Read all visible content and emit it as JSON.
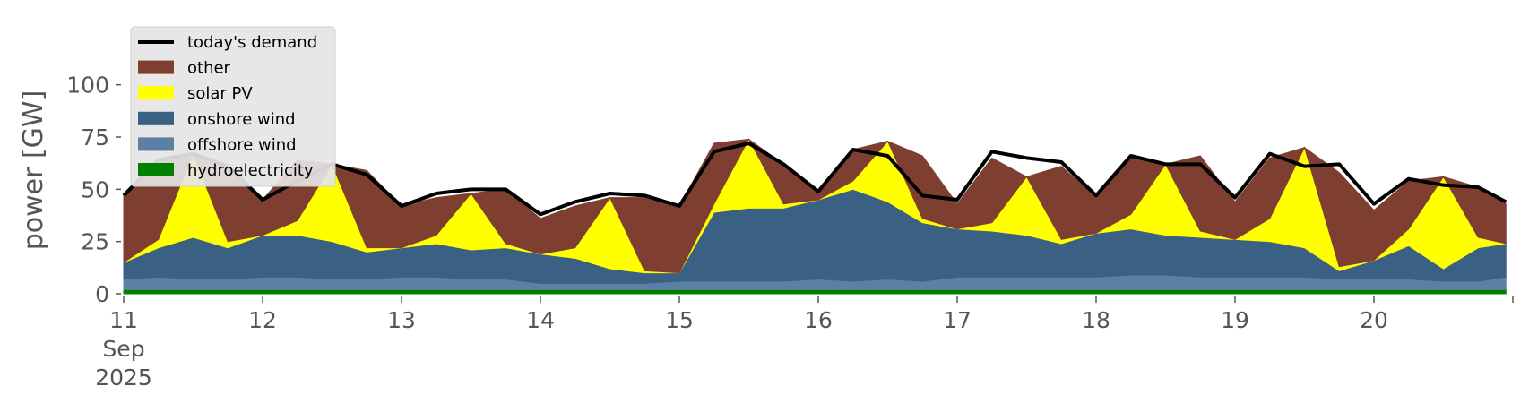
{
  "chart_data": {
    "type": "area",
    "title": "",
    "xlabel": "",
    "ylabel": "power [GW]",
    "ylim": [
      0,
      120
    ],
    "yticks": [
      0,
      25,
      50,
      75,
      100
    ],
    "xlim": [
      0,
      10
    ],
    "x_ticks": [
      {
        "x": 0,
        "lines": [
          "11",
          "Sep",
          "2025"
        ]
      },
      {
        "x": 1,
        "lines": [
          "12"
        ]
      },
      {
        "x": 2,
        "lines": [
          "13"
        ]
      },
      {
        "x": 3,
        "lines": [
          "14"
        ]
      },
      {
        "x": 4,
        "lines": [
          "15"
        ]
      },
      {
        "x": 5,
        "lines": [
          "16"
        ]
      },
      {
        "x": 6,
        "lines": [
          "17"
        ]
      },
      {
        "x": 7,
        "lines": [
          "18"
        ]
      },
      {
        "x": 8,
        "lines": [
          "19"
        ]
      },
      {
        "x": 9,
        "lines": [
          "20"
        ]
      }
    ],
    "grid": false,
    "legend_position": "top-left",
    "x": [
      0,
      0.25,
      0.5,
      0.75,
      1,
      1.25,
      1.5,
      1.75,
      2,
      2.25,
      2.5,
      2.75,
      3,
      3.25,
      3.5,
      3.75,
      4,
      4.25,
      4.5,
      4.75,
      5,
      5.25,
      5.5,
      5.75,
      6,
      6.25,
      6.5,
      6.75,
      7,
      7.25,
      7.5,
      7.75,
      8,
      8.25,
      8.5,
      8.75,
      9,
      9.25,
      9.5,
      9.75,
      9.95
    ],
    "stacked_series": [
      {
        "name": "hydroelectricity",
        "color": "#008000",
        "values": [
          2,
          2,
          2,
          2,
          2,
          2,
          2,
          2,
          2,
          2,
          2,
          2,
          2,
          2,
          2,
          2,
          2,
          2,
          2,
          2,
          2,
          2,
          2,
          2,
          2,
          2,
          2,
          2,
          2,
          2,
          2,
          2,
          2,
          2,
          2,
          2,
          2,
          2,
          2,
          2,
          2
        ]
      },
      {
        "name": "offshore wind",
        "color": "#5b80a5",
        "values": [
          5,
          6,
          5,
          5,
          6,
          6,
          5,
          5,
          6,
          6,
          5,
          5,
          3,
          3,
          3,
          3,
          4,
          4,
          4,
          4,
          5,
          4,
          5,
          4,
          6,
          6,
          6,
          6,
          6,
          7,
          7,
          6,
          6,
          6,
          6,
          5,
          5,
          5,
          4,
          4,
          6
        ]
      },
      {
        "name": "onshore wind",
        "color": "#3a6083",
        "values": [
          8,
          14,
          20,
          15,
          20,
          20,
          18,
          13,
          14,
          16,
          14,
          15,
          14,
          12,
          7,
          5,
          4,
          33,
          35,
          35,
          38,
          44,
          37,
          28,
          23,
          22,
          20,
          16,
          21,
          22,
          19,
          19,
          18,
          17,
          14,
          4,
          9,
          16,
          6,
          16,
          16
        ]
      },
      {
        "name": "solar PV",
        "color": "#ffff00",
        "values": [
          0,
          4,
          40,
          3,
          0,
          7,
          37,
          2,
          0,
          4,
          27,
          2,
          0,
          5,
          34,
          1,
          0,
          4,
          33,
          2,
          0,
          4,
          29,
          2,
          0,
          4,
          28,
          2,
          0,
          7,
          34,
          3,
          0,
          11,
          48,
          2,
          0,
          8,
          44,
          5,
          0
        ]
      },
      {
        "name": "other",
        "color": "#7f3f30",
        "values": [
          32,
          38,
          0,
          36,
          17,
          29,
          0,
          37,
          20,
          18,
          0,
          26,
          17,
          20,
          0,
          35,
          32,
          29,
          0,
          19,
          4,
          15,
          0,
          30,
          12,
          31,
          0,
          35,
          17,
          27,
          0,
          36,
          18,
          29,
          0,
          45,
          24,
          23,
          0,
          24,
          19
        ]
      }
    ],
    "demand": {
      "name": "today's demand",
      "color": "#000000",
      "values": [
        47,
        64,
        67,
        61,
        45,
        54,
        62,
        57,
        42,
        48,
        50,
        50,
        38,
        44,
        48,
        47,
        42,
        68,
        72,
        62,
        49,
        69,
        66,
        47,
        45,
        68,
        65,
        63,
        47,
        66,
        62,
        62,
        46,
        67,
        61,
        62,
        43,
        55,
        52,
        51,
        44
      ]
    },
    "legend": [
      "today's demand",
      "other",
      "solar PV",
      "onshore wind",
      "offshore wind",
      "hydroelectricity"
    ]
  }
}
